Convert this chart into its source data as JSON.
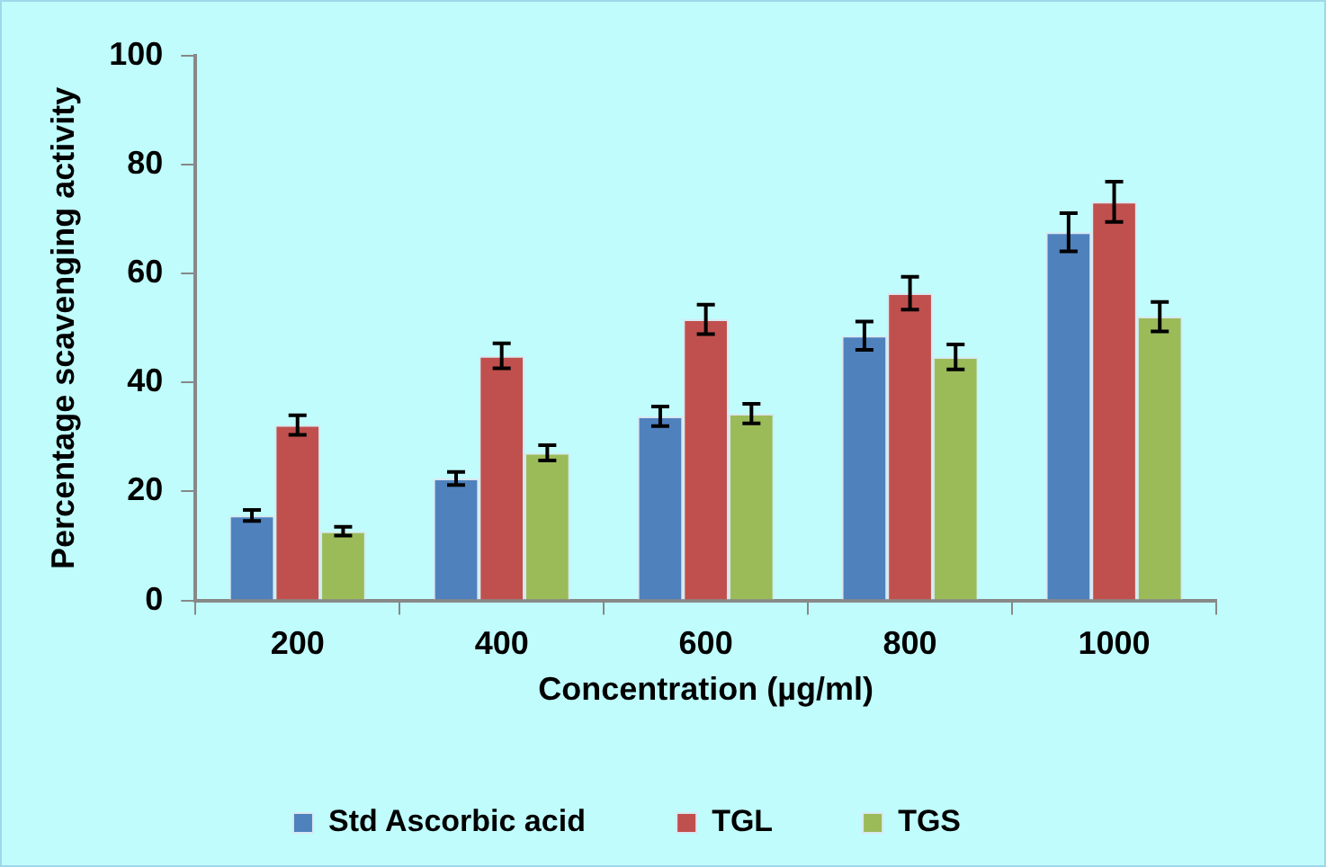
{
  "chart_data": {
    "type": "bar",
    "xlabel": "Concentration (µg/ml)",
    "ylabel": "Percentage scavenging activity",
    "categories": [
      "200",
      "400",
      "600",
      "800",
      "1000"
    ],
    "series": [
      {
        "name": "Std Ascorbic acid",
        "color": "#4f81bd",
        "values": [
          15.6,
          22.4,
          33.8,
          48.6,
          67.6
        ],
        "errors": [
          1.0,
          1.2,
          1.8,
          2.6,
          3.5
        ]
      },
      {
        "name": "TGL",
        "color": "#c0504d",
        "values": [
          32.2,
          44.9,
          51.6,
          56.4,
          73.2
        ],
        "errors": [
          1.8,
          2.3,
          2.7,
          3.0,
          3.7
        ]
      },
      {
        "name": "TGS",
        "color": "#9bbb59",
        "values": [
          12.7,
          27.1,
          34.3,
          44.7,
          52.1
        ],
        "errors": [
          0.8,
          1.4,
          1.8,
          2.3,
          2.7
        ]
      }
    ],
    "ylim": [
      0,
      100
    ],
    "yticks": [
      0,
      20,
      40,
      60,
      80,
      100
    ],
    "grid": false,
    "legend": "bottom"
  }
}
